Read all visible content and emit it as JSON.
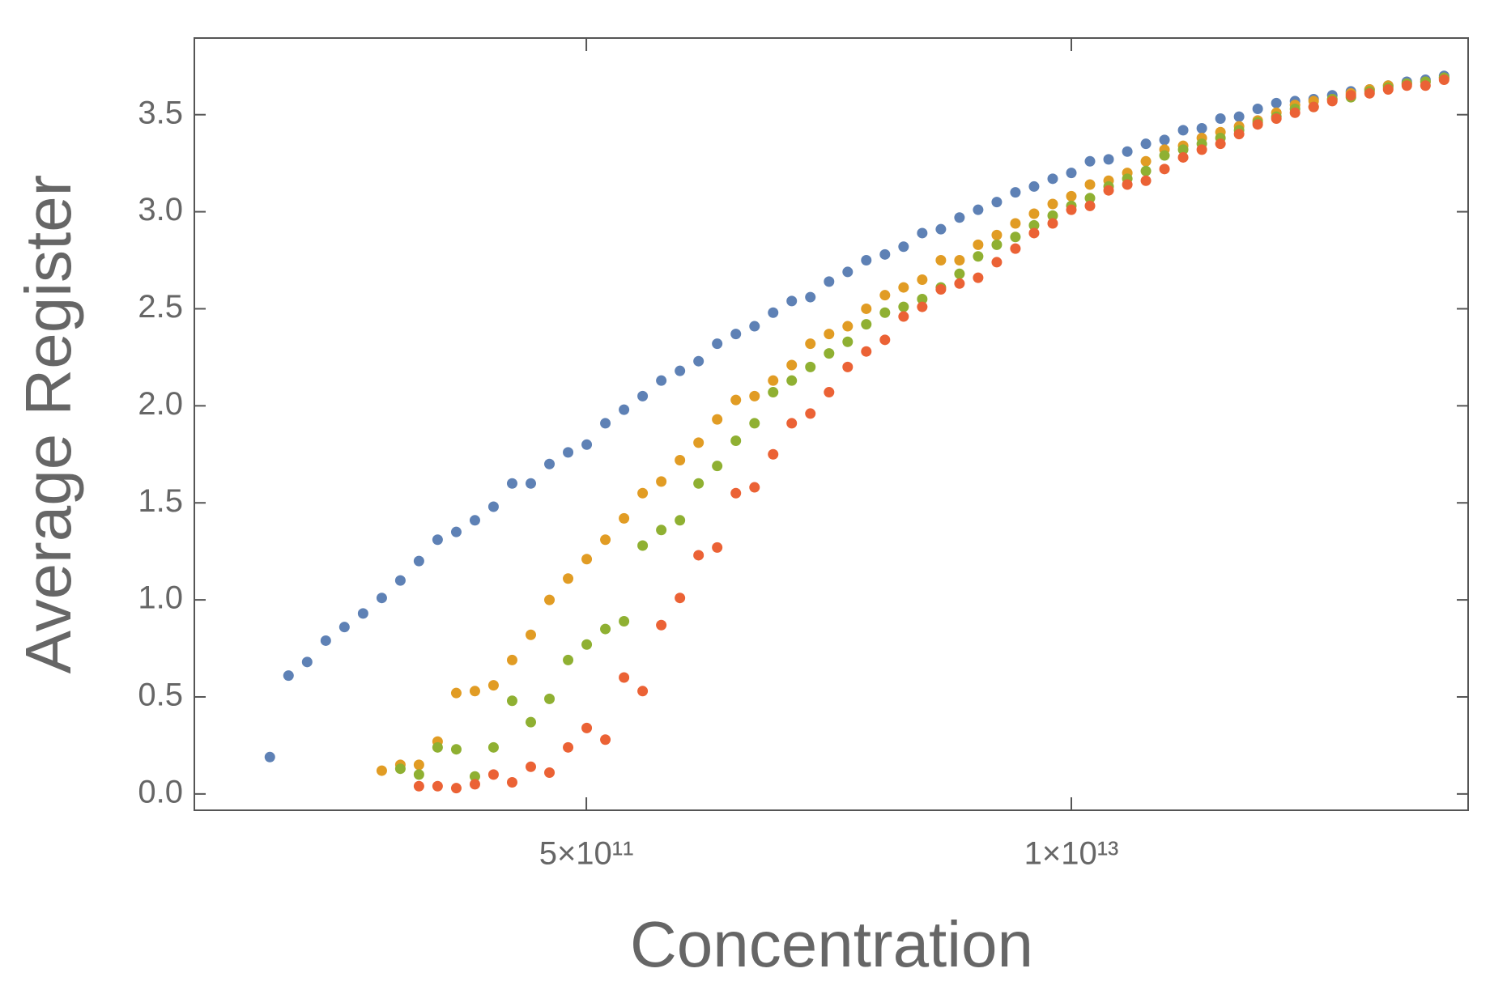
{
  "chart_data": {
    "type": "scatter",
    "x_label": "Concentration",
    "y_label": "Average Register",
    "log_x": true,
    "xlim": [
      44400000000.0,
      116000000000000.0
    ],
    "xticks": [
      {
        "value": 500000000000.0,
        "label": "5×10¹¹"
      },
      {
        "value": 10000000000000.0,
        "label": "1×10¹³"
      }
    ],
    "ylim": [
      -0.084,
      3.895
    ],
    "yticks": [
      {
        "value": 0,
        "label": "0.0"
      },
      0.5,
      {
        "value": 1,
        "label": "1.0"
      },
      1.5,
      {
        "value": 2,
        "label": "2.0"
      },
      2.5,
      {
        "value": 3,
        "label": "3.0"
      },
      3.5
    ],
    "x": [
      70790000000.0,
      79430000000.0,
      89130000000.0,
      100000000000.0,
      112200000000.0,
      125900000000.0,
      141300000000.0,
      158500000000.0,
      177800000000.0,
      199500000000.0,
      223900000000.0,
      251200000000.0,
      281800000000.0,
      316200000000.0,
      354800000000.0,
      398100000000.0,
      446700000000.0,
      501200000000.0,
      562300000000.0,
      631000000000.0,
      707900000000.0,
      794300000000.0,
      891300000000.0,
      1000000000000.0,
      1122000000000.0,
      1259000000000.0,
      1413000000000.0,
      1585000000000.0,
      1778000000000.0,
      1995000000000.0,
      2239000000000.0,
      2512000000000.0,
      2818000000000.0,
      3162000000000.0,
      3548000000000.0,
      3981000000000.0,
      4467000000000.0,
      5012000000000.0,
      5623000000000.0,
      6310000000000.0,
      7079000000000.0,
      7943000000000.0,
      8913000000000.0,
      10000000000000.0,
      11220000000000.0,
      12590000000000.0,
      14130000000000.0,
      15850000000000.0,
      17780000000000.0,
      19950000000000.0,
      22390000000000.0,
      25120000000000.0,
      28180000000000.0,
      31620000000000.0,
      35480000000000.0,
      39810000000000.0,
      44670000000000.0,
      50120000000000.0,
      56230000000000.0,
      63100000000000.0,
      70790000000000.0,
      79430000000000.0,
      89130000000000.0,
      100000000000000.0
    ],
    "series": [
      {
        "color": "#5e81b5",
        "values": [
          0.19,
          0.61,
          0.68,
          0.79,
          0.86,
          0.93,
          1.01,
          1.1,
          1.2,
          1.31,
          1.35,
          1.41,
          1.48,
          1.6,
          1.6,
          1.7,
          1.76,
          1.8,
          1.91,
          1.98,
          2.05,
          2.13,
          2.18,
          2.23,
          2.32,
          2.37,
          2.41,
          2.48,
          2.54,
          2.56,
          2.64,
          2.69,
          2.75,
          2.78,
          2.82,
          2.89,
          2.91,
          2.97,
          3.01,
          3.05,
          3.1,
          3.13,
          3.17,
          3.2,
          3.26,
          3.27,
          3.31,
          3.35,
          3.37,
          3.42,
          3.43,
          3.48,
          3.49,
          3.53,
          3.56,
          3.57,
          3.58,
          3.6,
          3.62,
          3.63,
          3.65,
          3.67,
          3.68,
          3.7
        ]
      },
      {
        "color": "#e19c24",
        "values": [
          null,
          null,
          null,
          null,
          null,
          null,
          0.12,
          0.15,
          0.15,
          0.27,
          0.52,
          0.53,
          0.56,
          0.69,
          0.82,
          1.0,
          1.11,
          1.21,
          1.31,
          1.42,
          1.55,
          1.61,
          1.72,
          1.81,
          1.93,
          2.03,
          2.05,
          2.13,
          2.21,
          2.32,
          2.37,
          2.41,
          2.5,
          2.57,
          2.61,
          2.65,
          2.75,
          2.75,
          2.83,
          2.88,
          2.94,
          2.99,
          3.04,
          3.08,
          3.14,
          3.16,
          3.2,
          3.26,
          3.32,
          3.34,
          3.38,
          3.41,
          3.44,
          3.47,
          3.51,
          3.55,
          3.57,
          3.58,
          3.61,
          3.63,
          3.65,
          3.66,
          3.67,
          3.69
        ]
      },
      {
        "color": "#8fb032",
        "values": [
          null,
          null,
          null,
          null,
          null,
          null,
          null,
          0.13,
          0.1,
          0.24,
          0.23,
          0.09,
          0.24,
          0.48,
          0.37,
          0.49,
          0.69,
          0.77,
          0.85,
          0.89,
          1.28,
          1.36,
          1.41,
          1.6,
          1.69,
          1.82,
          1.91,
          2.07,
          2.13,
          2.2,
          2.27,
          2.33,
          2.42,
          2.48,
          2.51,
          2.55,
          2.61,
          2.68,
          2.77,
          2.83,
          2.87,
          2.93,
          2.98,
          3.03,
          3.07,
          3.13,
          3.17,
          3.21,
          3.29,
          3.32,
          3.35,
          3.38,
          3.42,
          3.46,
          3.49,
          3.53,
          3.54,
          3.58,
          3.59,
          3.62,
          3.64,
          3.66,
          3.67,
          3.69
        ]
      },
      {
        "color": "#eb6235",
        "values": [
          null,
          null,
          null,
          null,
          null,
          null,
          null,
          null,
          0.04,
          0.04,
          0.03,
          0.05,
          0.1,
          0.06,
          0.14,
          0.11,
          0.24,
          0.34,
          0.28,
          0.6,
          0.53,
          0.87,
          1.01,
          1.23,
          1.27,
          1.55,
          1.58,
          1.75,
          1.91,
          1.96,
          2.07,
          2.2,
          2.28,
          2.34,
          2.46,
          2.51,
          2.6,
          2.63,
          2.66,
          2.74,
          2.81,
          2.89,
          2.94,
          3.01,
          3.03,
          3.11,
          3.14,
          3.16,
          3.22,
          3.28,
          3.32,
          3.35,
          3.4,
          3.45,
          3.48,
          3.51,
          3.54,
          3.57,
          3.6,
          3.61,
          3.63,
          3.65,
          3.65,
          3.68
        ]
      }
    ]
  }
}
